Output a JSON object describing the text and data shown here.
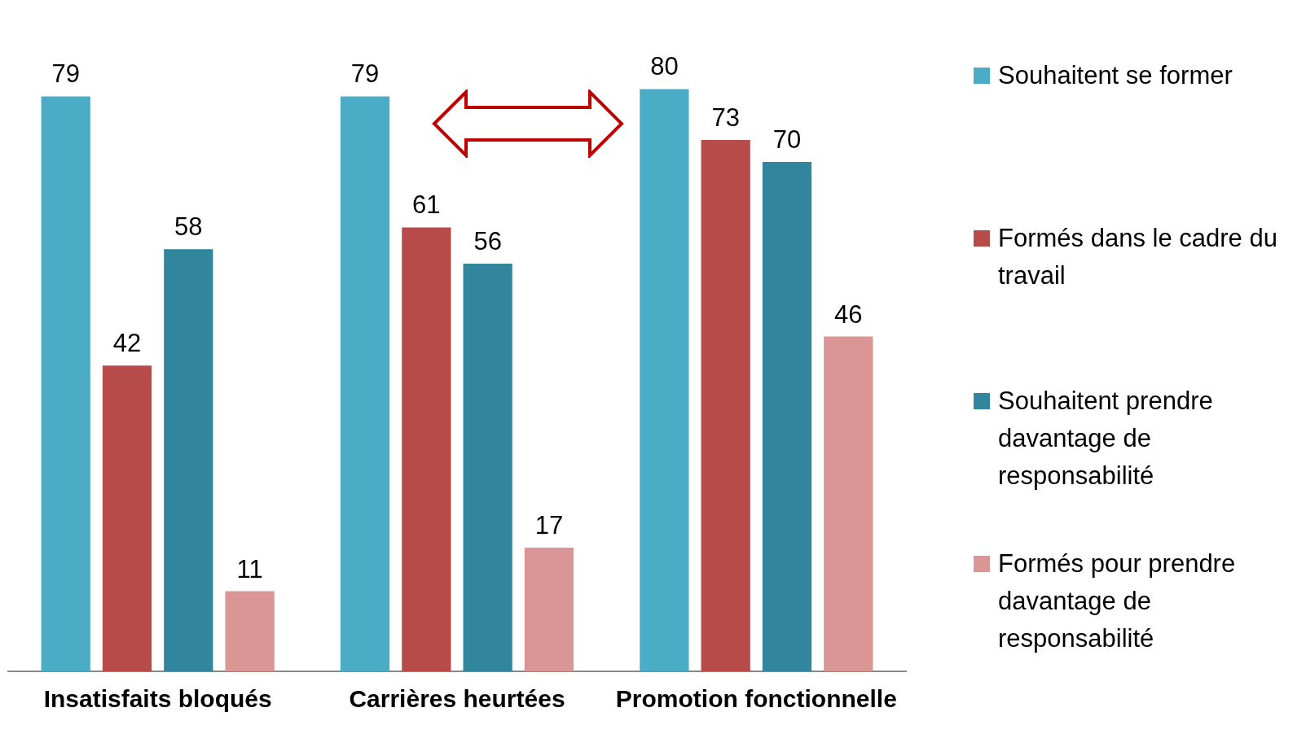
{
  "chart_data": {
    "type": "bar",
    "categories": [
      "Insatisfaits bloqués",
      "Carrières heurtées",
      "Promotion fonctionnelle"
    ],
    "series": [
      {
        "name": "Souhaitent se former",
        "color": "#4bacc6",
        "values": [
          79,
          79,
          80
        ]
      },
      {
        "name": "Formés dans le cadre du travail",
        "color": "#b64b4a",
        "values": [
          42,
          61,
          73
        ]
      },
      {
        "name": "Souhaitent prendre davantage de responsabilité",
        "color": "#31859c",
        "values": [
          58,
          56,
          70
        ]
      },
      {
        "name": "Formés pour prendre davantage de responsabilité",
        "color": "#da9694",
        "values": [
          11,
          17,
          46
        ]
      }
    ],
    "data_labels": true,
    "legend": "right",
    "grid": false
  }
}
